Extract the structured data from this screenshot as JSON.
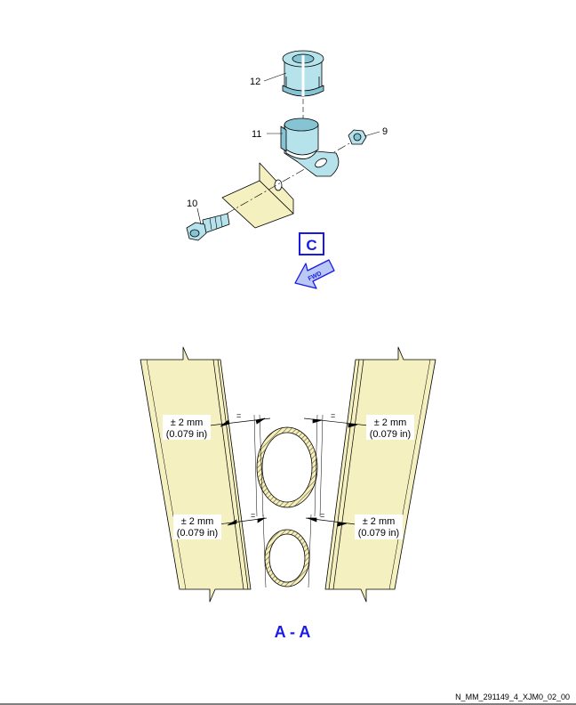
{
  "colors": {
    "part_fill": "#b6e2ec",
    "part_shade": "#86c3d3",
    "panel_fill": "#f5f0c0",
    "accent_blue": "#1a1ae6",
    "arrow_fill": "#b9c8f4",
    "outline": "#000000"
  },
  "exploded_view": {
    "callouts": {
      "bush": "12",
      "clip": "11",
      "nut": "9",
      "bolt": "10"
    },
    "view_label": "C",
    "fwd_label": "FWD",
    "fwd_icon": "forward-arrow-icon"
  },
  "section_view": {
    "title": "A - A",
    "equal_mark": "=",
    "dimensions": [
      {
        "tolerance": "± 2 mm",
        "imperial": "(0.079 in)"
      },
      {
        "tolerance": "± 2 mm",
        "imperial": "(0.079 in)"
      },
      {
        "tolerance": "± 2 mm",
        "imperial": "(0.079 in)"
      },
      {
        "tolerance": "± 2 mm",
        "imperial": "(0.079 in)"
      }
    ]
  },
  "reference_code": "N_MM_291149_4_XJM0_02_00"
}
